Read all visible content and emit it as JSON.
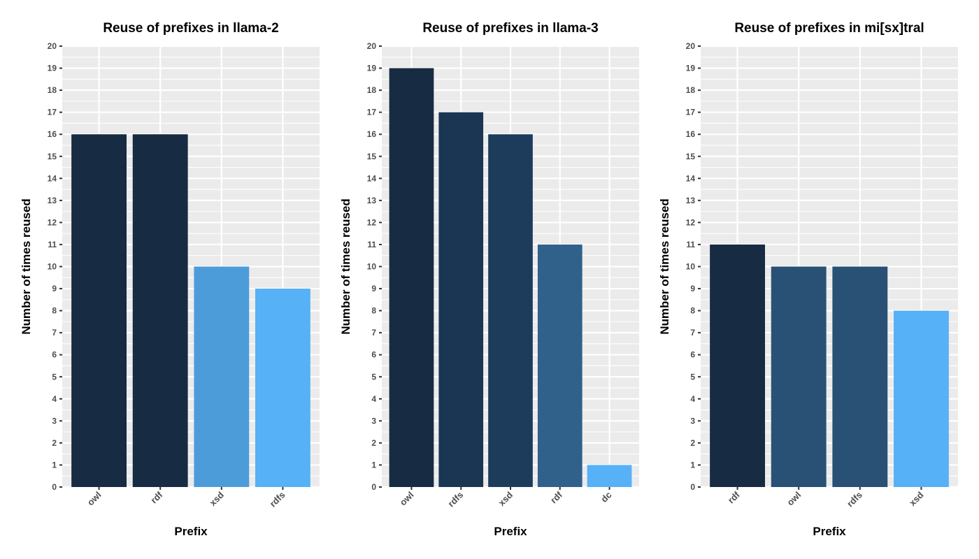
{
  "chart_data": [
    {
      "type": "bar",
      "title": "Reuse of prefixes in llama-2",
      "xlabel": "Prefix",
      "ylabel": "Number of times reused",
      "categories": [
        "owl",
        "rdf",
        "xsd",
        "rdfs"
      ],
      "values": [
        16,
        16,
        10,
        9
      ],
      "colors": [
        "#172b42",
        "#172b42",
        "#4d9cda",
        "#56b1f7"
      ],
      "ylim": [
        0,
        20
      ],
      "yticks": [
        0,
        1,
        2,
        3,
        4,
        5,
        6,
        7,
        8,
        9,
        10,
        11,
        12,
        13,
        14,
        15,
        16,
        17,
        18,
        19,
        20
      ],
      "grid": true,
      "legend": "none"
    },
    {
      "type": "bar",
      "title": "Reuse of prefixes in llama-3",
      "xlabel": "Prefix",
      "ylabel": "Number of times reused",
      "categories": [
        "owl",
        "rdfs",
        "xsd",
        "rdf",
        "dc"
      ],
      "values": [
        19,
        17,
        16,
        11,
        1
      ],
      "colors": [
        "#172b42",
        "#1b3653",
        "#1d3c5c",
        "#2f618b",
        "#56b1f7"
      ],
      "ylim": [
        0,
        20
      ],
      "yticks": [
        0,
        1,
        2,
        3,
        4,
        5,
        6,
        7,
        8,
        9,
        10,
        11,
        12,
        13,
        14,
        15,
        16,
        17,
        18,
        19,
        20
      ],
      "grid": true,
      "legend": "none"
    },
    {
      "type": "bar",
      "title": "Reuse of prefixes in mi[sx]tral",
      "xlabel": "Prefix",
      "ylabel": "Number of times reused",
      "categories": [
        "rdf",
        "owl",
        "rdfs",
        "xsd"
      ],
      "values": [
        11,
        10,
        10,
        8
      ],
      "colors": [
        "#172b42",
        "#285175",
        "#285175",
        "#56b1f7"
      ],
      "ylim": [
        0,
        20
      ],
      "yticks": [
        0,
        1,
        2,
        3,
        4,
        5,
        6,
        7,
        8,
        9,
        10,
        11,
        12,
        13,
        14,
        15,
        16,
        17,
        18,
        19,
        20
      ],
      "grid": true,
      "legend": "none"
    }
  ]
}
